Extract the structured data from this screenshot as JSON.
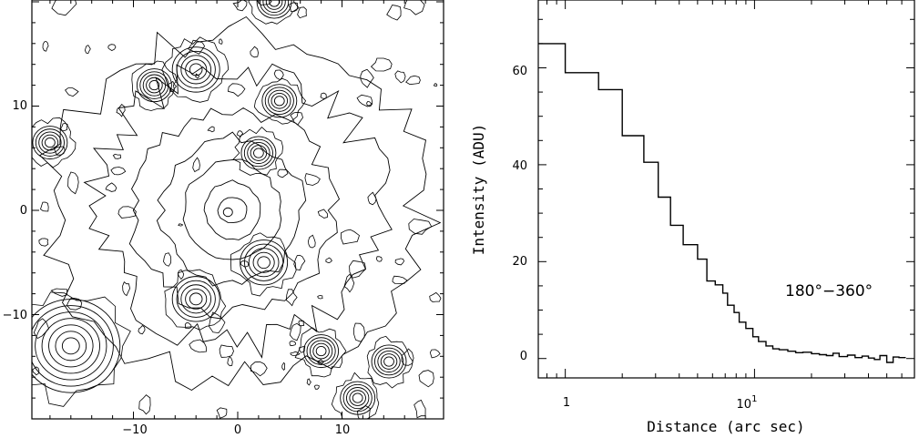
{
  "chart_data": [
    {
      "type": "contour",
      "title": "",
      "xlabel": "",
      "ylabel": "",
      "xlim": [
        -20,
        19.5
      ],
      "ylim": [
        -20,
        20
      ],
      "xticks": [
        -10,
        0,
        10
      ],
      "yticks": [
        -10,
        0,
        10
      ],
      "xtick_labels": [
        "−10",
        "0",
        "10"
      ],
      "ytick_labels": [
        "−10",
        "0",
        "10"
      ],
      "sources": [
        {
          "x": -0.5,
          "y": 0.0,
          "kind": "central galaxy"
        },
        {
          "x": 2.0,
          "y": 5.5,
          "kind": "star"
        },
        {
          "x": 2.5,
          "y": -5.0,
          "kind": "star"
        },
        {
          "x": -4.0,
          "y": -8.5,
          "kind": "star"
        },
        {
          "x": -16.0,
          "y": -13.0,
          "kind": "star"
        },
        {
          "x": -4.0,
          "y": 13.5,
          "kind": "star"
        },
        {
          "x": -8.0,
          "y": 12.0,
          "kind": "star"
        },
        {
          "x": 4.0,
          "y": 10.5,
          "kind": "star"
        },
        {
          "x": 3.5,
          "y": 20.0,
          "kind": "star"
        },
        {
          "x": -18.0,
          "y": 6.5,
          "kind": "star"
        },
        {
          "x": 14.5,
          "y": -14.5,
          "kind": "star"
        },
        {
          "x": 11.5,
          "y": -18.0,
          "kind": "star"
        },
        {
          "x": 8.0,
          "y": -13.5,
          "kind": "star"
        }
      ]
    },
    {
      "type": "line",
      "step": true,
      "title": "",
      "xlabel": "Distance (arc sec)",
      "ylabel": "Intensity (ADU)",
      "xscale": "log",
      "xlim": [
        0.72,
        70
      ],
      "ylim": [
        -4,
        74
      ],
      "xtick_labels": [
        {
          "base": "10",
          "exp": "0"
        },
        {
          "base": "10",
          "exp": "1"
        }
      ],
      "xtick_values": [
        1,
        10
      ],
      "yticks": [
        0,
        20,
        40,
        60
      ],
      "annotation": "180°−360°",
      "series": [
        {
          "x": [
            0.72,
            1.0,
            1.5,
            2.0,
            2.6,
            3.1,
            3.6,
            4.2,
            5.0,
            5.6,
            6.2,
            6.8,
            7.2,
            7.8,
            8.3,
            9.0,
            9.8,
            10.5,
            11.5,
            12.5,
            13.5,
            15,
            16.5,
            18,
            20,
            22,
            24,
            26,
            28,
            31,
            34,
            37,
            40,
            43,
            46,
            50,
            54,
            58
          ],
          "y": [
            65,
            59,
            55.5,
            46,
            40.5,
            33.3,
            27.5,
            23.5,
            20.5,
            16,
            15.2,
            13.5,
            11,
            9.5,
            7.5,
            6.2,
            4.5,
            3.5,
            2.6,
            2,
            1.8,
            1.5,
            1.2,
            1.3,
            1,
            0.8,
            0.6,
            1.1,
            0.4,
            0.7,
            0.2,
            0.5,
            0.1,
            -0.2,
            0.6,
            -0.8,
            0.3,
            0.2
          ]
        }
      ]
    }
  ]
}
